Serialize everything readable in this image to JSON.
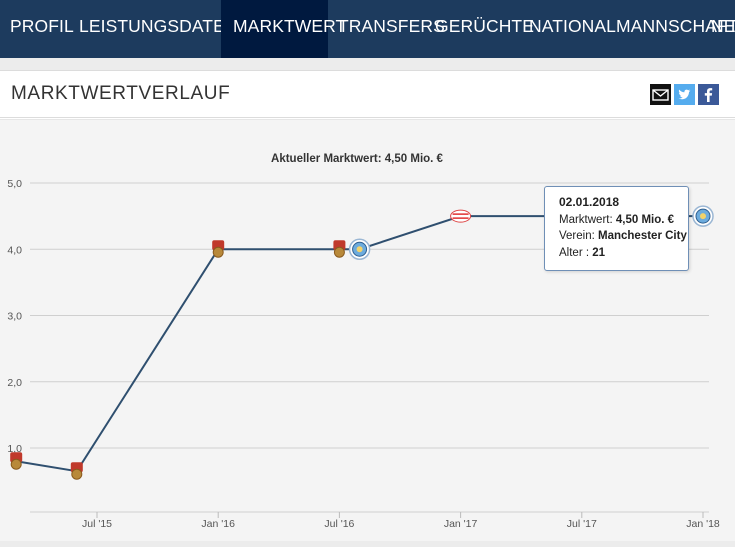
{
  "nav": {
    "items": [
      {
        "label": "PROFIL",
        "active": false
      },
      {
        "label": "LEISTUNGSDATEN",
        "active": false,
        "dropdown": true
      },
      {
        "label": "MARKTWERT",
        "active": true
      },
      {
        "label": "TRANSFERS",
        "active": false
      },
      {
        "label": "GERÜCHTE",
        "active": false
      },
      {
        "label": "NATIONALMANNSCHAFT",
        "active": false
      },
      {
        "label": "NEW",
        "active": false
      }
    ]
  },
  "box": {
    "title": "MARKTWERTVERLAUF",
    "share_icons": [
      "mail-icon",
      "twitter-icon",
      "facebook-icon"
    ]
  },
  "chart_data": {
    "type": "line",
    "title": "Aktueller Marktwert: 4,50 Mio. €",
    "y_ticks": [
      "5,0",
      "4,0",
      "3,0",
      "2,0",
      "1,0"
    ],
    "x_ticks": [
      "Jul '15",
      "Jan '16",
      "Jul '16",
      "Jan '17",
      "Jul '17",
      "Jan '18"
    ],
    "ylim": [
      0.0,
      5.0
    ],
    "grid": true,
    "line_color": "#2f4f6f",
    "series": [
      {
        "points": [
          {
            "date": "2015-03",
            "value": 0.8,
            "club": "augsburg"
          },
          {
            "date": "2015-06",
            "value": 0.65,
            "club": "augsburg"
          },
          {
            "date": "2016-01",
            "value": 4.0,
            "club": "augsburg"
          },
          {
            "date": "2016-07",
            "value": 4.0,
            "club": "augsburg"
          },
          {
            "date": "2016-08",
            "value": 4.0,
            "club": "manchester-city"
          },
          {
            "date": "2017-01",
            "value": 4.5,
            "club": "psv"
          },
          {
            "date": "2018-01",
            "value": 4.5,
            "club": "manchester-city"
          }
        ]
      }
    ]
  },
  "tooltip": {
    "date": "02.01.2018",
    "market_label": "Marktwert:",
    "market_value": "4,50 Mio. €",
    "club_label": "Verein:",
    "club_value": "Manchester City",
    "age_label": "Alter",
    "age_value": "21"
  },
  "colors": {
    "nav_bg": "#1d3b5e",
    "nav_active": "#00193f",
    "augsburg": "#c0392b",
    "city": "#6cabdd",
    "psv": "#e03030"
  }
}
